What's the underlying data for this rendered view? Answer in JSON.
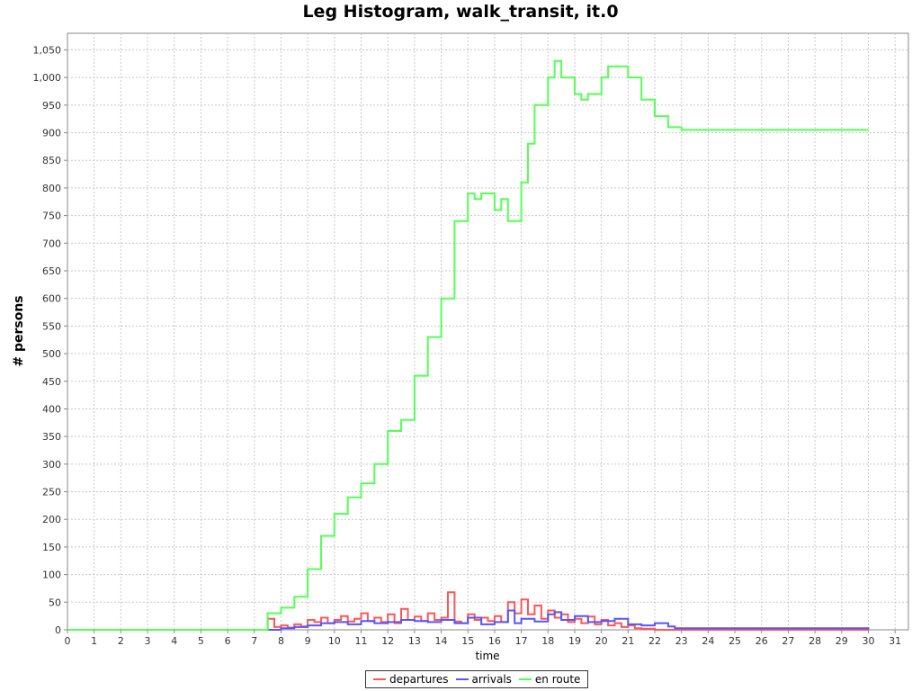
{
  "chart_data": {
    "type": "line",
    "title": "Leg Histogram, walk_transit, it.0",
    "xlabel": "time",
    "ylabel": "# persons",
    "xlim": [
      0,
      31.5
    ],
    "ylim": [
      0,
      1080
    ],
    "xticks": [
      "0",
      "1",
      "2",
      "3",
      "4",
      "5",
      "6",
      "7",
      "8",
      "9",
      "10",
      "11",
      "12",
      "13",
      "14",
      "15",
      "16",
      "17",
      "18",
      "19",
      "20",
      "21",
      "22",
      "23",
      "24",
      "25",
      "26",
      "27",
      "28",
      "29",
      "30",
      "31"
    ],
    "yticks": [
      "0",
      "50",
      "100",
      "150",
      "200",
      "250",
      "300",
      "350",
      "400",
      "450",
      "500",
      "550",
      "600",
      "650",
      "700",
      "750",
      "800",
      "850",
      "900",
      "950",
      "1,000",
      "1,050"
    ],
    "grid": true,
    "legend_position": "bottom",
    "series": [
      {
        "name": "departures",
        "color": "#ff5555",
        "x": [
          0,
          7.5,
          7.75,
          8.0,
          8.25,
          8.5,
          8.75,
          9.0,
          9.25,
          9.5,
          9.75,
          10.0,
          10.25,
          10.5,
          10.75,
          11.0,
          11.25,
          11.5,
          11.75,
          12.0,
          12.25,
          12.5,
          12.75,
          13.0,
          13.25,
          13.5,
          13.75,
          14.0,
          14.25,
          14.5,
          14.75,
          15.0,
          15.25,
          15.5,
          15.75,
          16.0,
          16.25,
          16.5,
          16.75,
          17.0,
          17.25,
          17.5,
          17.75,
          18.0,
          18.25,
          18.5,
          18.75,
          19.0,
          19.25,
          19.5,
          19.75,
          20.0,
          20.25,
          20.5,
          20.75,
          21.0,
          21.25,
          21.5,
          22.0,
          30.0
        ],
        "y": [
          0,
          20,
          5,
          8,
          4,
          10,
          6,
          18,
          14,
          22,
          12,
          18,
          25,
          15,
          20,
          30,
          16,
          22,
          14,
          28,
          12,
          38,
          18,
          24,
          16,
          30,
          18,
          22,
          68,
          15,
          12,
          28,
          18,
          22,
          16,
          25,
          14,
          50,
          30,
          55,
          28,
          44,
          20,
          35,
          22,
          28,
          14,
          20,
          12,
          24,
          10,
          18,
          8,
          12,
          5,
          8,
          3,
          2,
          0,
          0
        ]
      },
      {
        "name": "arrivals",
        "color": "#5555ff",
        "x": [
          0,
          7.5,
          8.0,
          8.5,
          9.0,
          9.5,
          10.0,
          10.5,
          11.0,
          11.5,
          12.0,
          12.5,
          13.0,
          13.5,
          14.0,
          14.5,
          15.0,
          15.5,
          16.0,
          16.5,
          16.75,
          17.0,
          17.5,
          18.0,
          18.25,
          18.5,
          19.0,
          19.5,
          20.0,
          20.5,
          21.0,
          21.5,
          22.0,
          22.5,
          22.75,
          30.0
        ],
        "y": [
          0,
          0,
          3,
          5,
          8,
          12,
          14,
          10,
          16,
          12,
          14,
          18,
          16,
          14,
          18,
          12,
          22,
          10,
          14,
          35,
          12,
          20,
          15,
          28,
          32,
          18,
          25,
          14,
          16,
          20,
          10,
          8,
          12,
          6,
          3,
          0
        ]
      },
      {
        "name": "en route",
        "color": "#55ff55",
        "x": [
          0,
          7.5,
          8.0,
          8.5,
          9.0,
          9.5,
          10.0,
          10.5,
          11.0,
          11.5,
          12.0,
          12.5,
          13.0,
          13.5,
          14.0,
          14.5,
          15.0,
          15.25,
          15.5,
          16.0,
          16.25,
          16.5,
          17.0,
          17.25,
          17.5,
          18.0,
          18.25,
          18.5,
          19.0,
          19.25,
          19.5,
          20.0,
          20.25,
          20.5,
          21.0,
          21.5,
          22.0,
          22.5,
          23.0,
          30.0
        ],
        "y": [
          0,
          30,
          40,
          60,
          110,
          170,
          210,
          240,
          265,
          300,
          360,
          380,
          460,
          530,
          600,
          740,
          790,
          780,
          790,
          760,
          780,
          740,
          810,
          880,
          950,
          1000,
          1030,
          1000,
          970,
          960,
          970,
          1000,
          1020,
          1020,
          1000,
          960,
          930,
          910,
          905,
          905
        ]
      }
    ]
  }
}
